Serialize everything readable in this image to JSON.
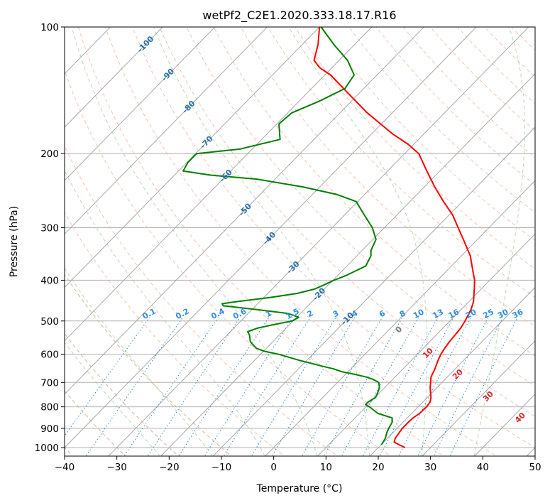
{
  "chart_data": {
    "type": "line",
    "subtype": "skew-T log-P diagram",
    "title": "wetPf2_C2E1.2020.333.18.17.R16",
    "xlabel": "Temperature (°C)",
    "ylabel": "Pressure (hPa)",
    "xlim": [
      -40,
      50
    ],
    "ylim": [
      1050,
      100
    ],
    "y_scale": "log",
    "x_ticks": [
      "−40",
      "−30",
      "−20",
      "−10",
      "0",
      "10",
      "20",
      "30",
      "40",
      "50"
    ],
    "y_ticks": [
      "100",
      "200",
      "300",
      "400",
      "500",
      "600",
      "700",
      "800",
      "900",
      "1000"
    ],
    "grid": true,
    "series": [
      {
        "role": "temperature",
        "color": "#ff0000",
        "points": [
          [
            1000,
            25.1
          ],
          [
            985,
            23.5
          ],
          [
            970,
            22.0
          ],
          [
            950,
            21.5
          ],
          [
            920,
            21.2
          ],
          [
            900,
            21.0
          ],
          [
            870,
            21.0
          ],
          [
            850,
            21.1
          ],
          [
            830,
            21.5
          ],
          [
            800,
            21.6
          ],
          [
            780,
            21.4
          ],
          [
            760,
            20.7
          ],
          [
            740,
            19.7
          ],
          [
            720,
            18.7
          ],
          [
            700,
            17.8
          ],
          [
            680,
            16.9
          ],
          [
            650,
            16.1
          ],
          [
            620,
            15.1
          ],
          [
            600,
            14.5
          ],
          [
            580,
            14.1
          ],
          [
            560,
            13.8
          ],
          [
            540,
            13.6
          ],
          [
            520,
            13.4
          ],
          [
            500,
            12.9
          ],
          [
            470,
            11.9
          ],
          [
            450,
            10.9
          ],
          [
            420,
            8.7
          ],
          [
            400,
            7.1
          ],
          [
            380,
            5.0
          ],
          [
            350,
            1.7
          ],
          [
            320,
            -2.7
          ],
          [
            300,
            -5.9
          ],
          [
            280,
            -9.3
          ],
          [
            260,
            -13.6
          ],
          [
            240,
            -18.0
          ],
          [
            220,
            -22.5
          ],
          [
            200,
            -27.3
          ],
          [
            190,
            -31.1
          ],
          [
            180,
            -35.8
          ],
          [
            160,
            -44.8
          ],
          [
            140,
            -53.9
          ],
          [
            130,
            -58.9
          ],
          [
            125,
            -62.3
          ],
          [
            120,
            -64.8
          ],
          [
            110,
            -67.0
          ],
          [
            100,
            -70.0
          ]
        ]
      },
      {
        "role": "dewpoint",
        "color": "#008000",
        "points": [
          [
            985,
            20.1
          ],
          [
            970,
            19.9
          ],
          [
            950,
            19.6
          ],
          [
            920,
            18.8
          ],
          [
            900,
            18.4
          ],
          [
            870,
            17.9
          ],
          [
            850,
            17.1
          ],
          [
            830,
            13.6
          ],
          [
            800,
            10.7
          ],
          [
            790,
            9.5
          ],
          [
            780,
            9.5
          ],
          [
            760,
            10.1
          ],
          [
            740,
            9.6
          ],
          [
            720,
            9.0
          ],
          [
            700,
            7.9
          ],
          [
            690,
            6.5
          ],
          [
            680,
            4.6
          ],
          [
            670,
            1.9
          ],
          [
            660,
            -1.2
          ],
          [
            650,
            -3.3
          ],
          [
            640,
            -6.0
          ],
          [
            620,
            -11.5
          ],
          [
            600,
            -16.5
          ],
          [
            590,
            -19.9
          ],
          [
            580,
            -22.0
          ],
          [
            560,
            -24.3
          ],
          [
            540,
            -25.7
          ],
          [
            530,
            -26.7
          ],
          [
            520,
            -25.5
          ],
          [
            510,
            -23.0
          ],
          [
            500,
            -20.2
          ],
          [
            490,
            -19.6
          ],
          [
            480,
            -22.3
          ],
          [
            470,
            -28.9
          ],
          [
            460,
            -36.2
          ],
          [
            455,
            -36.8
          ],
          [
            450,
            -34.6
          ],
          [
            440,
            -28.9
          ],
          [
            430,
            -24.4
          ],
          [
            420,
            -21.9
          ],
          [
            410,
            -20.8
          ],
          [
            400,
            -19.8
          ],
          [
            390,
            -18.4
          ],
          [
            370,
            -16.4
          ],
          [
            350,
            -17.3
          ],
          [
            340,
            -18.3
          ],
          [
            320,
            -19.4
          ],
          [
            300,
            -22.3
          ],
          [
            280,
            -26.2
          ],
          [
            260,
            -30.3
          ],
          [
            250,
            -35.4
          ],
          [
            240,
            -43.2
          ],
          [
            230,
            -53.5
          ],
          [
            225,
            -63.1
          ],
          [
            220,
            -69.1
          ],
          [
            210,
            -69.8
          ],
          [
            200,
            -69.8
          ],
          [
            195,
            -62.3
          ],
          [
            185,
            -56.5
          ],
          [
            180,
            -57.5
          ],
          [
            170,
            -59.6
          ],
          [
            160,
            -59.2
          ],
          [
            150,
            -56.1
          ],
          [
            140,
            -53.6
          ],
          [
            130,
            -54.4
          ],
          [
            120,
            -58.4
          ],
          [
            110,
            -64.0
          ],
          [
            100,
            -69.7
          ]
        ]
      }
    ],
    "isotherm_labels": [
      "-100",
      "-90",
      "-80",
      "-70",
      "-60",
      "-50",
      "-40",
      "-30",
      "-20",
      "-10",
      "0",
      "10",
      "20",
      "30",
      "40"
    ],
    "mixing_ratio_labels": [
      "0.1",
      "0.2",
      "0.4",
      "0.6",
      "1",
      "1.5",
      "2",
      "3",
      "4",
      "6",
      "8",
      "10",
      "13",
      "16",
      "20",
      "25",
      "30",
      "36"
    ]
  }
}
